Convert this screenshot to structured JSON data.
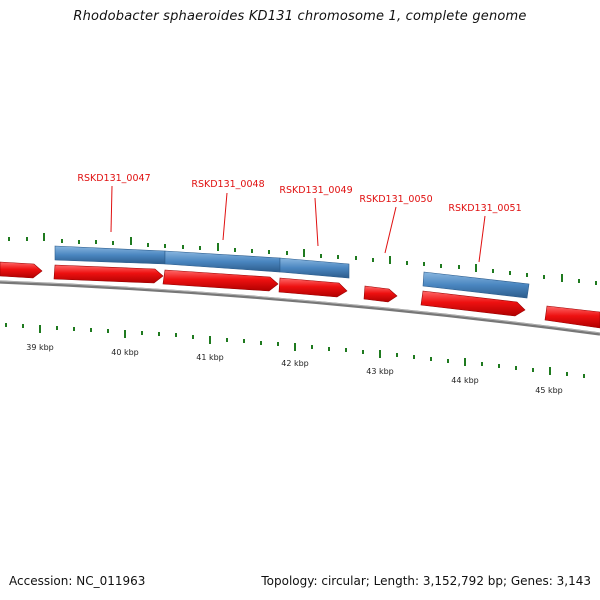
{
  "title": "Rhodobacter sphaeroides KD131 chromosome 1, complete genome",
  "footer": {
    "accession": "Accession: NC_011963",
    "topology": "Topology: circular; Length: 3,152,792 bp; Genes: 3,143"
  },
  "colors": {
    "forward_gene": "#ee1111",
    "feature_bar": "#4a86c0",
    "backbone": "#777777",
    "tick": "#1f7a1f",
    "gene_label": "#e01010"
  },
  "chart_data": {
    "type": "genome-map",
    "scale_labels": [
      "39 kbp",
      "40 kbp",
      "41 kbp",
      "42 kbp",
      "43 kbp",
      "44 kbp",
      "45 kbp"
    ],
    "labeled_genes": [
      "RSKD131_0047",
      "RSKD131_0048",
      "RSKD131_0049",
      "RSKD131_0050",
      "RSKD131_0051"
    ]
  }
}
